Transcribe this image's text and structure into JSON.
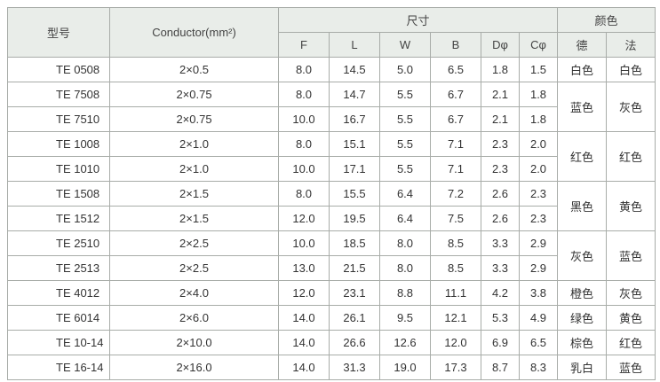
{
  "header": {
    "model": "型号",
    "conductor": "Conductor(mm²)",
    "dimensions": "尺寸",
    "color": "颜色",
    "dimension_columns": [
      "F",
      "L",
      "W",
      "B",
      "Dφ",
      "Cφ"
    ],
    "color_columns": [
      "德",
      "法"
    ]
  },
  "table": {
    "rows": [
      {
        "model": "TE 0508",
        "conductor": "2×0.5",
        "dims": [
          "8.0",
          "14.5",
          "5.0",
          "6.5",
          "1.8",
          "1.5"
        ],
        "colors": [
          "白色",
          "白色"
        ]
      },
      {
        "model": "TE 7508",
        "conductor": "2×0.75",
        "dims": [
          "8.0",
          "14.7",
          "5.5",
          "6.7",
          "2.1",
          "1.8"
        ],
        "colors": [
          "蓝色",
          "灰色"
        ]
      },
      {
        "model": "TE 7510",
        "conductor": "2×0.75",
        "dims": [
          "10.0",
          "16.7",
          "5.5",
          "6.7",
          "2.1",
          "1.8"
        ]
      },
      {
        "model": "TE 1008",
        "conductor": "2×1.0",
        "dims": [
          "8.0",
          "15.1",
          "5.5",
          "7.1",
          "2.3",
          "2.0"
        ],
        "colors": [
          "红色",
          "红色"
        ]
      },
      {
        "model": "TE 1010",
        "conductor": "2×1.0",
        "dims": [
          "10.0",
          "17.1",
          "5.5",
          "7.1",
          "2.3",
          "2.0"
        ]
      },
      {
        "model": "TE 1508",
        "conductor": "2×1.5",
        "dims": [
          "8.0",
          "15.5",
          "6.4",
          "7.2",
          "2.6",
          "2.3"
        ],
        "colors": [
          "黑色",
          "黄色"
        ]
      },
      {
        "model": "TE 1512",
        "conductor": "2×1.5",
        "dims": [
          "12.0",
          "19.5",
          "6.4",
          "7.5",
          "2.6",
          "2.3"
        ]
      },
      {
        "model": "TE 2510",
        "conductor": "2×2.5",
        "dims": [
          "10.0",
          "18.5",
          "8.0",
          "8.5",
          "3.3",
          "2.9"
        ],
        "colors": [
          "灰色",
          "蓝色"
        ]
      },
      {
        "model": "TE 2513",
        "conductor": "2×2.5",
        "dims": [
          "13.0",
          "21.5",
          "8.0",
          "8.5",
          "3.3",
          "2.9"
        ]
      },
      {
        "model": "TE 4012",
        "conductor": "2×4.0",
        "dims": [
          "12.0",
          "23.1",
          "8.8",
          "11.1",
          "4.2",
          "3.8"
        ],
        "colors": [
          "橙色",
          "灰色"
        ]
      },
      {
        "model": "TE 6014",
        "conductor": "2×6.0",
        "dims": [
          "14.0",
          "26.1",
          "9.5",
          "12.1",
          "5.3",
          "4.9"
        ],
        "colors": [
          "绿色",
          "黄色"
        ]
      },
      {
        "model": "TE 10-14",
        "conductor": "2×10.0",
        "dims": [
          "14.0",
          "26.6",
          "12.6",
          "12.0",
          "6.9",
          "6.5"
        ],
        "colors": [
          "棕色",
          "红色"
        ]
      },
      {
        "model": "TE 16-14",
        "conductor": "2×16.0",
        "dims": [
          "14.0",
          "31.3",
          "19.0",
          "17.3",
          "8.7",
          "8.3"
        ],
        "colors": [
          "乳白",
          "蓝色"
        ]
      }
    ]
  }
}
